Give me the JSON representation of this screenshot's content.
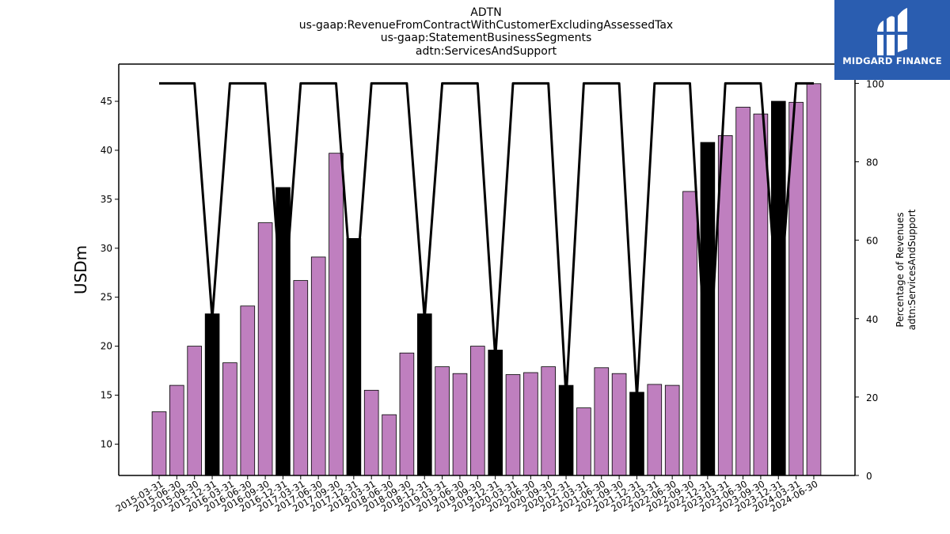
{
  "title_lines": [
    "ADTN",
    "us-gaap:RevenueFromContractWithCustomerExcludingAssessedTax",
    "us-gaap:StatementBusinessSegments",
    "adtn:ServicesAndSupport"
  ],
  "logo": {
    "text": "MIDGARD FINANCE",
    "bg_color": "#2a5db0",
    "icon": "midgard-logo-icon"
  },
  "chart_data": {
    "type": "bar",
    "ylabel": "USDm",
    "y2label_lines": [
      "Percentage of Revenues",
      "adtn:ServicesAndSupport"
    ],
    "ylim": [
      6.8,
      48.8
    ],
    "y2lim": [
      0,
      100
    ],
    "yticks": [
      10,
      15,
      20,
      25,
      30,
      35,
      40,
      45
    ],
    "y2ticks": [
      0,
      20,
      40,
      60,
      80,
      100
    ],
    "bar_color": "#bf7fbf",
    "highlight_color": "#000000",
    "categories": [
      "2015-03-31",
      "2015-06-30",
      "2015-09-30",
      "2015-12-31",
      "2016-03-31",
      "2016-06-30",
      "2016-09-30",
      "2016-12-31",
      "2017-03-31",
      "2017-06-30",
      "2017-09-30",
      "2017-12-31",
      "2018-03-31",
      "2018-06-30",
      "2018-09-30",
      "2018-12-31",
      "2019-03-31",
      "2019-06-30",
      "2019-09-30",
      "2019-12-31",
      "2020-03-31",
      "2020-06-30",
      "2020-09-30",
      "2020-12-31",
      "2021-03-31",
      "2021-06-30",
      "2021-09-30",
      "2021-12-31",
      "2022-03-31",
      "2022-06-30",
      "2022-09-30",
      "2022-12-31",
      "2023-03-31",
      "2023-06-30",
      "2023-09-30",
      "2023-12-31",
      "2024-03-31",
      "2024-06-30"
    ],
    "values": [
      13.3,
      16.0,
      20.0,
      23.3,
      18.3,
      24.1,
      32.6,
      36.2,
      26.7,
      29.1,
      39.7,
      31.0,
      15.5,
      13.0,
      19.3,
      23.3,
      17.9,
      17.2,
      20.0,
      19.6,
      17.1,
      17.3,
      17.9,
      16.0,
      13.7,
      17.8,
      17.2,
      15.3,
      16.1,
      16.0,
      35.8,
      40.8,
      41.5,
      44.4,
      43.7,
      45.0,
      44.9,
      46.8
    ],
    "highlighted": [
      false,
      false,
      false,
      true,
      false,
      false,
      false,
      true,
      false,
      false,
      false,
      true,
      false,
      false,
      false,
      true,
      false,
      false,
      false,
      true,
      false,
      false,
      false,
      true,
      false,
      false,
      false,
      true,
      false,
      false,
      false,
      true,
      false,
      false,
      false,
      true,
      false,
      false
    ],
    "line_series": {
      "name": "Percentage of Revenues",
      "color": "#000000",
      "values": [
        100,
        100,
        100,
        40,
        100,
        100,
        100,
        40,
        100,
        100,
        100,
        40,
        100,
        100,
        100,
        40,
        100,
        100,
        100,
        30,
        100,
        100,
        100,
        20,
        100,
        100,
        100,
        20,
        100,
        100,
        100,
        20,
        100,
        100,
        100,
        40,
        100,
        100
      ]
    }
  }
}
